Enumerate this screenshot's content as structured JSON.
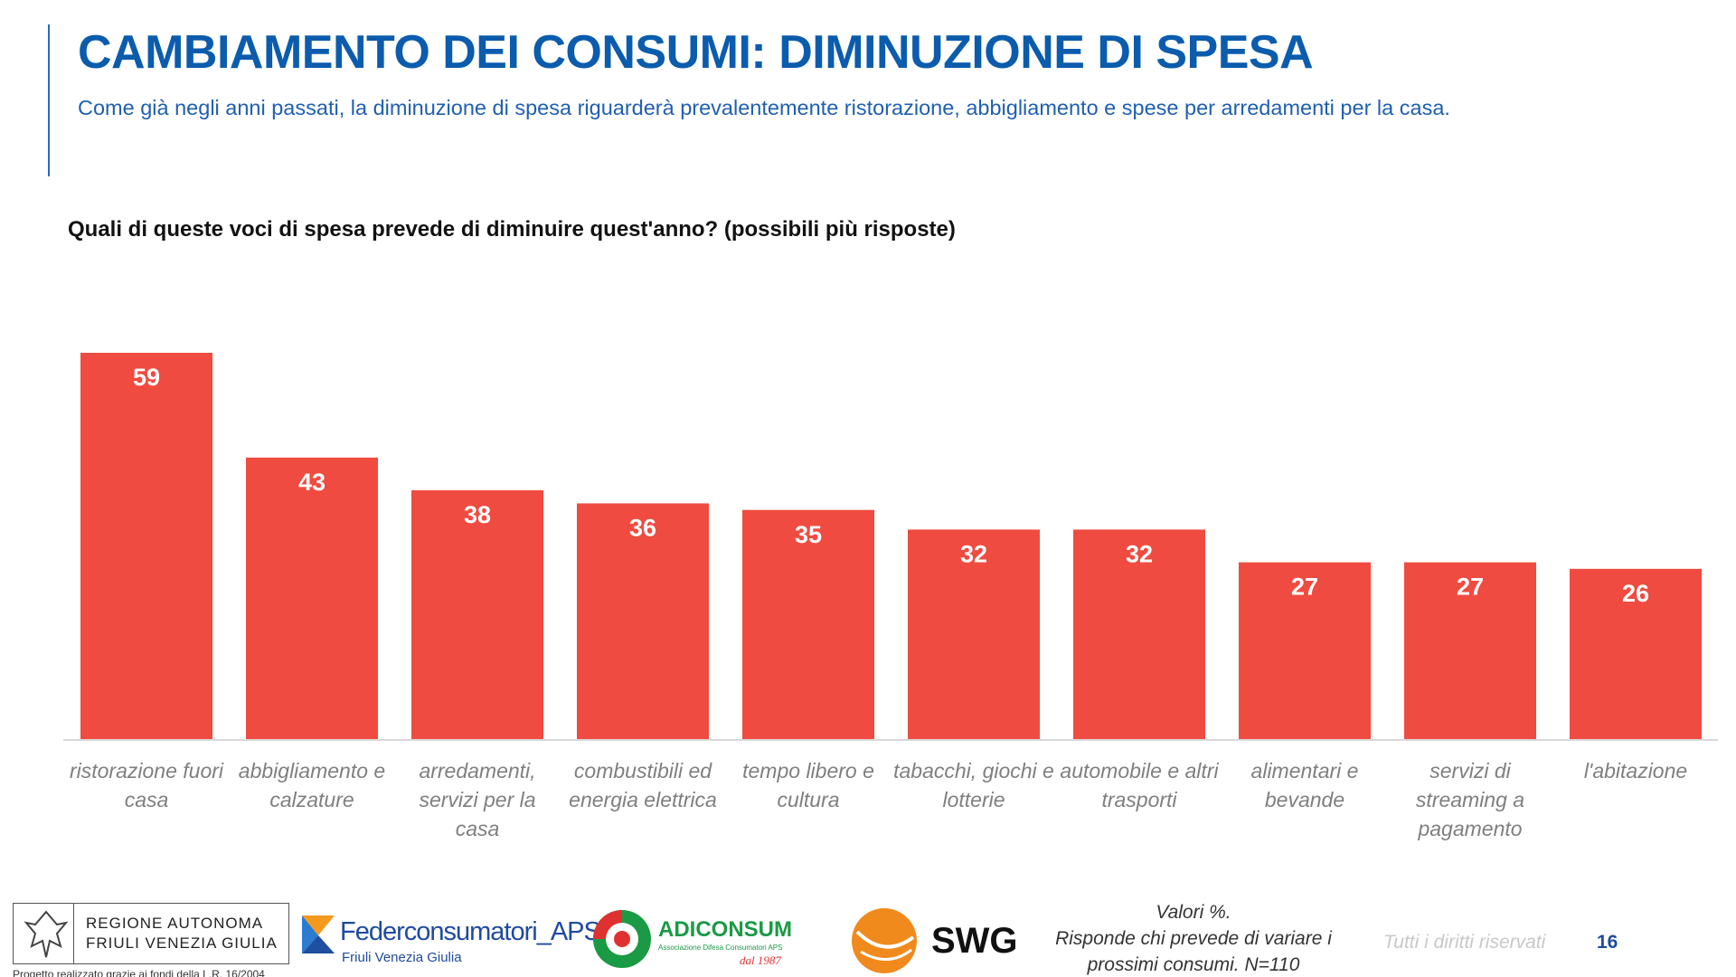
{
  "header": {
    "title": "CAMBIAMENTO DEI CONSUMI: DIMINUZIONE DI SPESA",
    "subtitle": "Come già negli anni passati, la diminuzione di spesa riguarderà prevalentemente ristorazione, abbigliamento e spese per arredamenti per la casa."
  },
  "chart_data": {
    "type": "bar",
    "title": "Quali di queste voci di spesa prevede di diminuire quest'anno? (possibili più risposte)",
    "categories": [
      "ristorazione fuori casa",
      "abbigliamento e calzature",
      "arredamenti, servizi per la casa",
      "combustibili ed energia elettrica",
      "tempo libero e cultura",
      "tabacchi, giochi e lotterie",
      "automobile e altri trasporti",
      "alimentari e bevande",
      "servizi di streaming a pagamento",
      "l'abitazione"
    ],
    "values": [
      59,
      43,
      38,
      36,
      35,
      32,
      32,
      27,
      27,
      26
    ],
    "color": "#f04b40"
  },
  "footer": {
    "region_line1": "REGIONE AUTONOMA",
    "region_line2": "FRIULI VENEZIA GIULIA",
    "project_note": "Progetto realizzato grazie ai fondi della L.R. 16/2004",
    "federconsumatori": "Federconsumatori_APS",
    "federconsumatori_sub": "Friuli Venezia Giulia",
    "adiconsum": "ADICONSUM",
    "adiconsum_sub": "Associazione Difesa Consumatori APS",
    "adiconsum_since": "dal 1987",
    "swg": "SWG",
    "note_line1": "Valori %.",
    "note_line2": "Risponde chi prevede di variare i",
    "note_line3": "prossimi consumi. N=110",
    "rights": "Tutti i diritti riservati",
    "page": "16"
  }
}
